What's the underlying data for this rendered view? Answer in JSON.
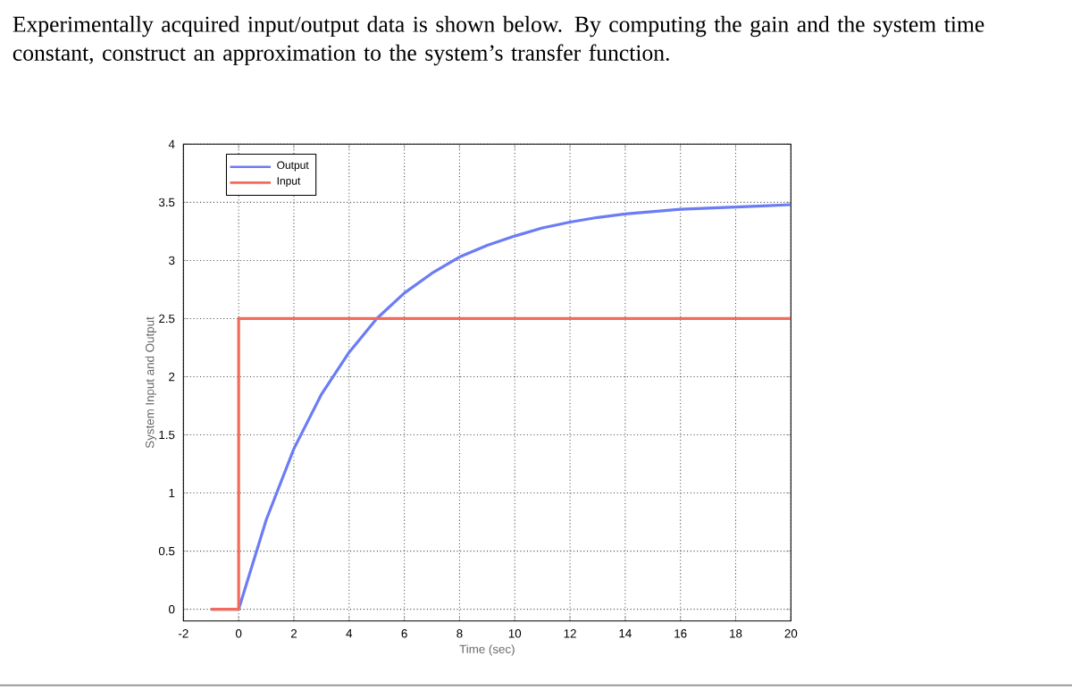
{
  "chart_data": {
    "type": "line",
    "title": "Experimentally acquired input/output data is shown below. By computing the gain and the system time constant, construct an approximation to the system’s transfer function.",
    "xlabel": "Time (sec)",
    "ylabel": "System Input and Output",
    "series": [
      {
        "name": "Output",
        "color": "#6b7cf5",
        "x": [
          -1,
          0,
          1,
          2,
          3,
          4,
          5,
          6,
          7,
          8,
          9,
          10,
          11,
          12,
          13,
          14,
          15,
          16,
          17,
          18,
          19,
          20
        ],
        "values": [
          0,
          0,
          0.77,
          1.38,
          1.85,
          2.21,
          2.5,
          2.72,
          2.89,
          3.03,
          3.13,
          3.21,
          3.28,
          3.33,
          3.37,
          3.4,
          3.42,
          3.44,
          3.45,
          3.46,
          3.47,
          3.48
        ]
      },
      {
        "name": "Input",
        "color": "#f26b5b",
        "x": [
          -1,
          0,
          0,
          20
        ],
        "values": [
          0,
          0,
          2.5,
          2.5
        ]
      }
    ],
    "xlim": [
      -2,
      20
    ],
    "ylim": [
      -0.1,
      4
    ],
    "xticks": [
      -2,
      0,
      2,
      4,
      6,
      8,
      10,
      12,
      14,
      16,
      18,
      20
    ],
    "yticks": [
      0,
      0.5,
      1,
      1.5,
      2,
      2.5,
      3,
      3.5,
      4
    ],
    "grid": true,
    "legend": "top left"
  }
}
